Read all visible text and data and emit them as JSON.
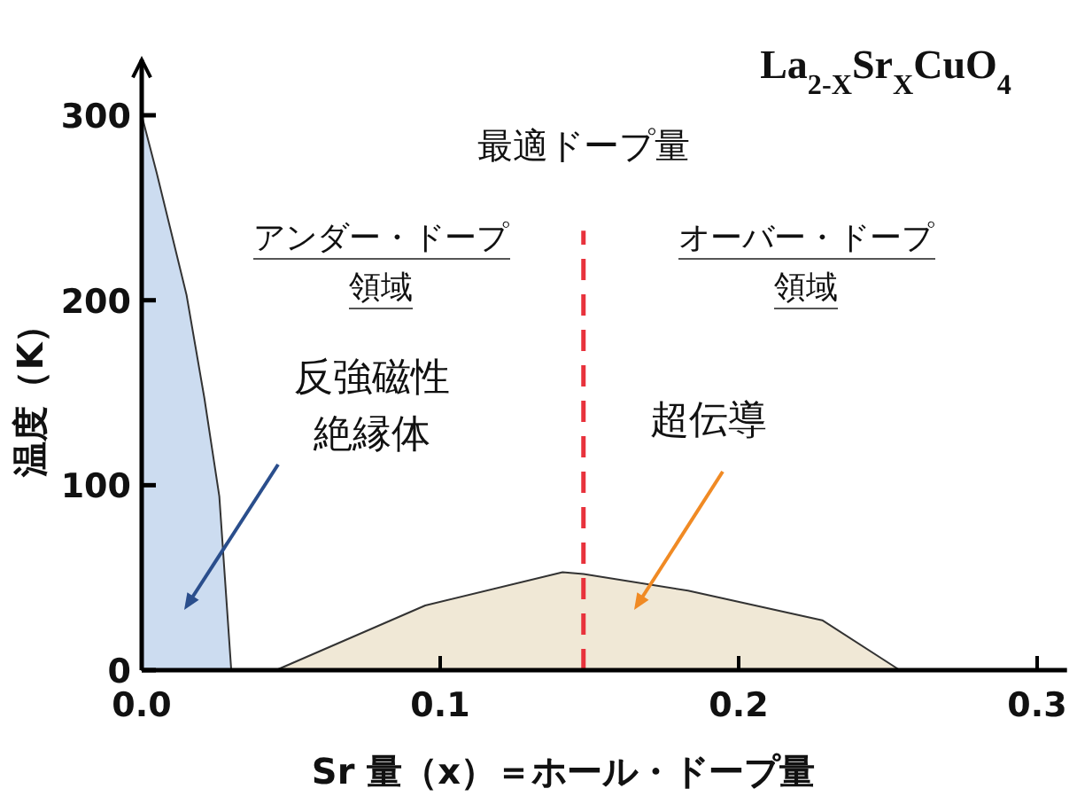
{
  "chart_data": {
    "type": "area",
    "title": "La$_{2-X}$Sr$_{X}$CuO$_{4}$",
    "xlabel": "Sr 量（x）＝ホール・ドープ量",
    "ylabel": "温度（K）",
    "xlim": [
      0,
      0.31
    ],
    "ylim": [
      0,
      330
    ],
    "xticks": [
      {
        "value": 0,
        "label": "0.0"
      },
      {
        "value": 0.1,
        "label": "0.1"
      },
      {
        "value": 0.2,
        "label": "0.2"
      },
      {
        "value": 0.3,
        "label": "0.3"
      }
    ],
    "yticks": [
      0,
      100,
      200,
      300
    ],
    "grid": false,
    "series": [
      {
        "color": "#ccdcf0",
        "x": [
          0,
          0.005,
          0.015,
          0.021,
          0.026,
          0.03
        ],
        "values": [
          300,
          269,
          203,
          147,
          94,
          0
        ]
      },
      {
        "color": "#f0e8d6",
        "x": [
          0.045,
          0.095,
          0.141,
          0.148,
          0.183,
          0.228,
          0.254
        ],
        "values": [
          0,
          35,
          53,
          52,
          43,
          27,
          0
        ]
      }
    ],
    "ref_lines": [
      {
        "axis": "x",
        "value": 0.148,
        "label": "最適ドープ量",
        "color": "#e8323c",
        "line_style": "dashed"
      }
    ],
    "annotations": [
      "アンダー・ドープ",
      "領域",
      "オーバー・ドープ",
      "領域",
      "反強磁性",
      "絶縁体",
      "超伝導"
    ]
  }
}
